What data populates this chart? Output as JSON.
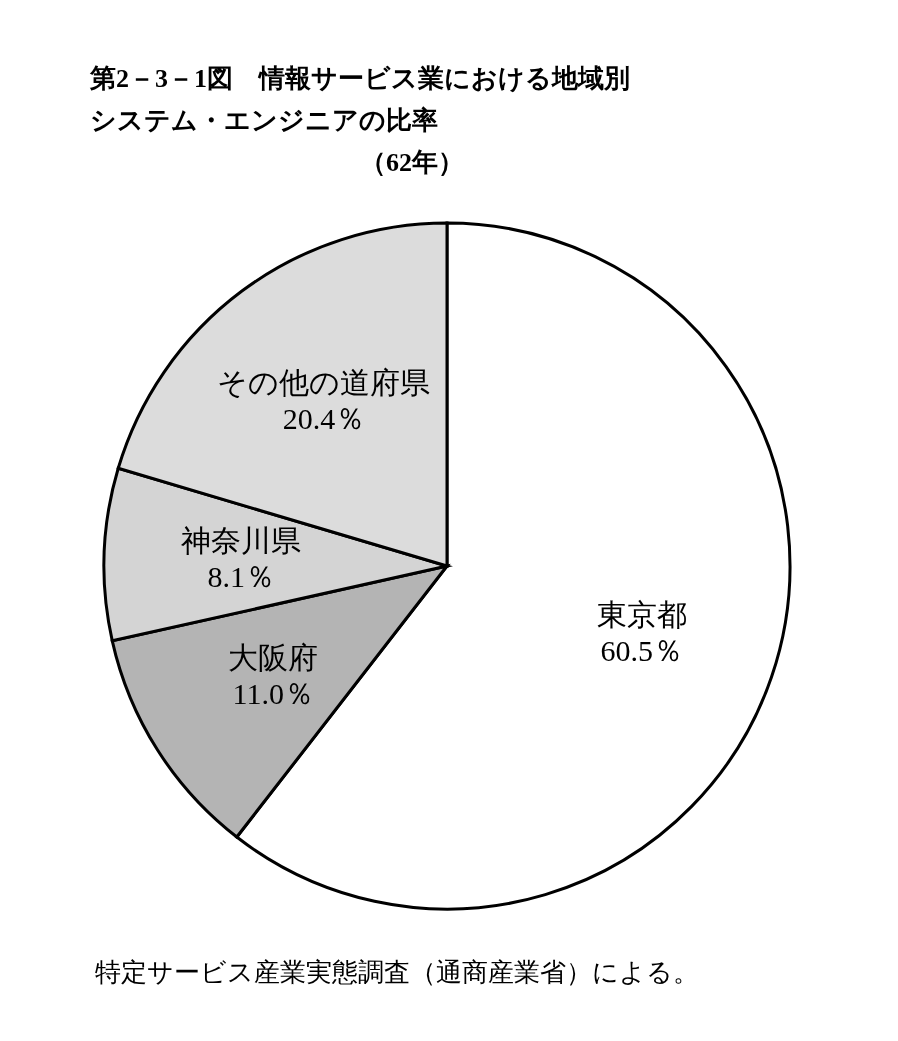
{
  "chart_data": {
    "type": "pie",
    "title": "第2－3－1図　情報サービス業における地域別システム・エンジニアの比率",
    "subtitle": "（62年）",
    "categories": [
      "東京都",
      "大阪府",
      "神奈川県",
      "その他の道府県"
    ],
    "values": [
      60.5,
      11.0,
      8.1,
      20.4
    ],
    "value_labels": [
      "60.5％",
      "11.0％",
      "8.1％",
      "20.4％"
    ],
    "colors": [
      "#ffffff",
      "#b4b4b4",
      "#d4d4d4",
      "#dcdcdc"
    ],
    "annotations": [
      "特定サービス産業実態調査（通商産業省）による。"
    ]
  }
}
